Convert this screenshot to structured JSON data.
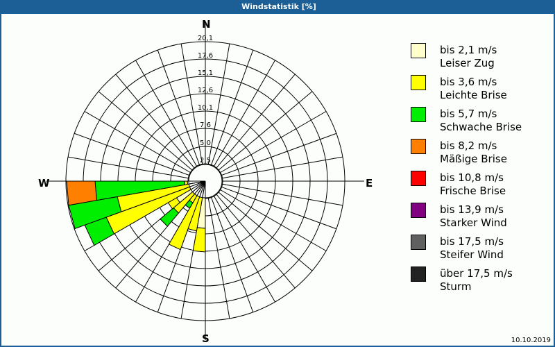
{
  "window": {
    "title": "Windstatistik [%]"
  },
  "compass": {
    "n": "N",
    "e": "E",
    "s": "S",
    "w": "W"
  },
  "footer": {
    "date": "10.10.2019"
  },
  "legend": [
    {
      "range": "bis 2,1 m/s",
      "name": "Leiser Zug",
      "color": "#ffffcc"
    },
    {
      "range": "bis 3,6 m/s",
      "name": "Leichte Brise",
      "color": "#ffff00"
    },
    {
      "range": "bis 5,7 m/s",
      "name": "Schwache Brise",
      "color": "#00ee00"
    },
    {
      "range": "bis 8,2 m/s",
      "name": "Mäßige Brise",
      "color": "#ff8000"
    },
    {
      "range": "bis 10,8 m/s",
      "name": "Frische Brise",
      "color": "#ff0000"
    },
    {
      "range": "bis 13,9 m/s",
      "name": "Starker Wind",
      "color": "#800080"
    },
    {
      "range": "bis 17,5 m/s",
      "name": "Steifer Wind",
      "color": "#606060"
    },
    {
      "range": "über 17,5 m/s",
      "name": "Sturm",
      "color": "#222222"
    }
  ],
  "chart_data": {
    "type": "windrose",
    "title": "Windstatistik [%]",
    "radial_unit": "%",
    "radial_ticks": [
      "2,5",
      "5,0",
      "7,6",
      "10,1",
      "12,6",
      "15,1",
      "17,6",
      "20,1"
    ],
    "radial_tick_values": [
      2.5,
      5.0,
      7.6,
      10.1,
      12.6,
      15.1,
      17.6,
      20.1
    ],
    "rmax": 20.1,
    "sector_width_deg": 10,
    "directions": [
      "N",
      "E",
      "S",
      "W"
    ],
    "classes": [
      "bis 2,1 m/s",
      "bis 3,6 m/s",
      "bis 5,7 m/s",
      "bis 8,2 m/s",
      "bis 10,8 m/s",
      "bis 13,9 m/s",
      "bis 17,5 m/s",
      "über 17,5 m/s"
    ],
    "note": "cumulative stacked frequencies (%) per sector; bearing = sector start, clockwise from N",
    "sectors": [
      {
        "from": 180,
        "to": 190,
        "cumulative": [
          6.8,
          10.2
        ]
      },
      {
        "from": 190,
        "to": 200,
        "cumulative": [
          0,
          7.3
        ]
      },
      {
        "from": 200,
        "to": 210,
        "cumulative": [
          0,
          10.5
        ]
      },
      {
        "from": 210,
        "to": 220,
        "cumulative": [
          0,
          3.6,
          4.5
        ]
      },
      {
        "from": 220,
        "to": 230,
        "cumulative": [
          0,
          6.0,
          8.5
        ]
      },
      {
        "from": 230,
        "to": 240,
        "cumulative": [
          4.8,
          6.2
        ]
      },
      {
        "from": 240,
        "to": 250,
        "cumulative": [
          0,
          15.2,
          18.5
        ]
      },
      {
        "from": 250,
        "to": 260,
        "cumulative": [
          0,
          12.9,
          20.0
        ]
      },
      {
        "from": 260,
        "to": 270,
        "cumulative": [
          2.6,
          3.0,
          15.9,
          20.0
        ]
      }
    ],
    "date": "10.10.2019"
  }
}
